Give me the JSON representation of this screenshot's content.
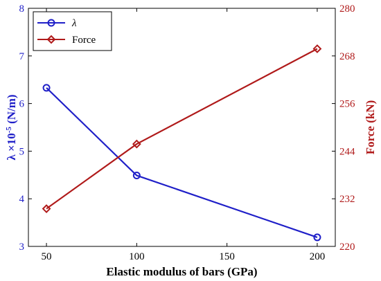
{
  "chart_data": {
    "type": "line",
    "x": [
      50,
      100,
      200
    ],
    "xlabel": "Elastic modulus of bars (GPa)",
    "xlim": [
      40,
      210
    ],
    "xticks": [
      50,
      100,
      150,
      200
    ],
    "grid": false,
    "legend_position": "top-left",
    "left_axis": {
      "label_main": "λ ×10",
      "label_exp": "-5",
      "label_unit": " (N/m)",
      "ylim": [
        3,
        8
      ],
      "ticks": [
        3,
        4,
        5,
        6,
        7,
        8
      ],
      "color": "#1f1fc8"
    },
    "right_axis": {
      "label": "Force (kN)",
      "ylim": [
        220,
        280
      ],
      "ticks": [
        220,
        232,
        244,
        256,
        268,
        280
      ],
      "color": "#b01a1a"
    },
    "series": [
      {
        "name": "λ",
        "axis": "left",
        "marker": "circle",
        "color": "#1f1fc8",
        "values": [
          6.33,
          4.49,
          3.19
        ]
      },
      {
        "name": "Force",
        "axis": "right",
        "marker": "diamond",
        "color": "#b01a1a",
        "values": [
          229.5,
          245.8,
          269.8
        ]
      }
    ]
  }
}
